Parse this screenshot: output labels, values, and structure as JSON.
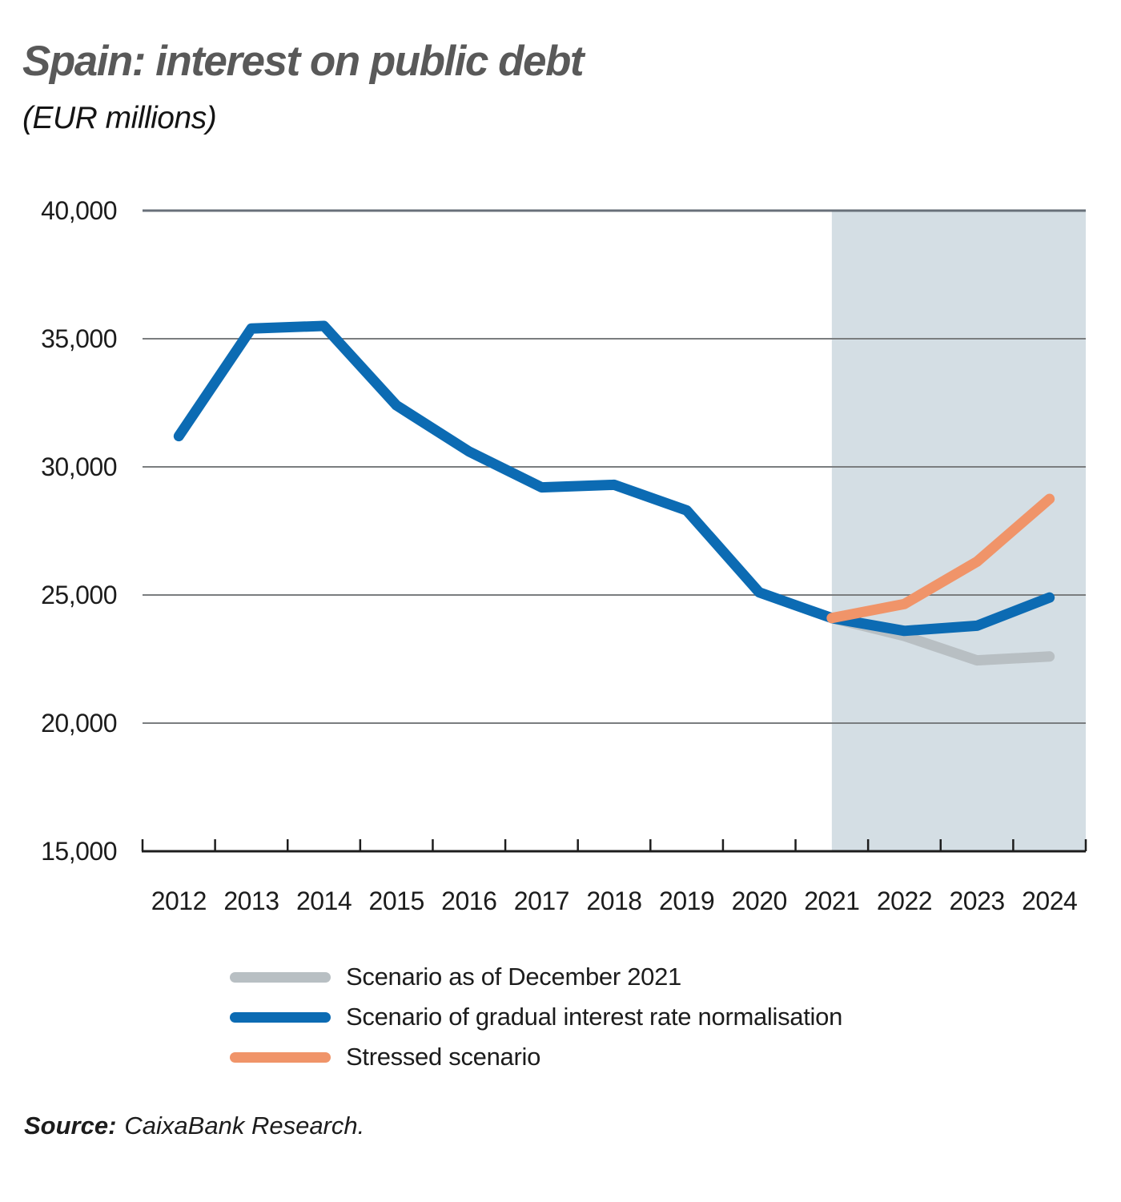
{
  "source": {
    "label": "Source:",
    "text": "CaixaBank Research."
  },
  "chart_data": {
    "type": "line",
    "title": "Spain: interest on public debt",
    "subtitle": "(EUR millions)",
    "x_labels": [
      "2012",
      "2013",
      "2014",
      "2015",
      "2016",
      "2017",
      "2018",
      "2019",
      "2020",
      "2021",
      "2022",
      "2023",
      "2024"
    ],
    "ylim": [
      15000,
      40000
    ],
    "y_ticks": [
      {
        "value": 40000,
        "label": "40,000"
      },
      {
        "value": 35000,
        "label": "35,000"
      },
      {
        "value": 30000,
        "label": "30,000"
      },
      {
        "value": 25000,
        "label": "25,000"
      },
      {
        "value": 20000,
        "label": "20,000"
      },
      {
        "value": 15000,
        "label": "15,000"
      }
    ],
    "grid": "horizontal",
    "legend_position": "bottom",
    "forecast_shading": {
      "from_year": "2021",
      "to_year": "2024",
      "color": "#d4dee4"
    },
    "series": [
      {
        "name": "Scenario as of December 2021",
        "color": "#b8bfc3",
        "x": [
          "2021",
          "2022",
          "2023",
          "2024"
        ],
        "values": [
          24100,
          23400,
          22450,
          22600
        ]
      },
      {
        "name": "Scenario of gradual interest rate normalisation",
        "color": "#0c6bb3",
        "x": [
          "2012",
          "2013",
          "2014",
          "2015",
          "2016",
          "2017",
          "2018",
          "2019",
          "2020",
          "2021",
          "2022",
          "2023",
          "2024"
        ],
        "values": [
          31200,
          35400,
          35500,
          32400,
          30600,
          29200,
          29300,
          28300,
          25100,
          24100,
          23600,
          23800,
          24900
        ]
      },
      {
        "name": "Stressed scenario",
        "color": "#f09469",
        "x": [
          "2021",
          "2022",
          "2023",
          "2024"
        ],
        "values": [
          24100,
          24650,
          26300,
          28750
        ]
      }
    ],
    "colors": {
      "gridline": "#7a7d7f",
      "top_gridline": "#687079",
      "axis": "#1d1d1d"
    }
  }
}
